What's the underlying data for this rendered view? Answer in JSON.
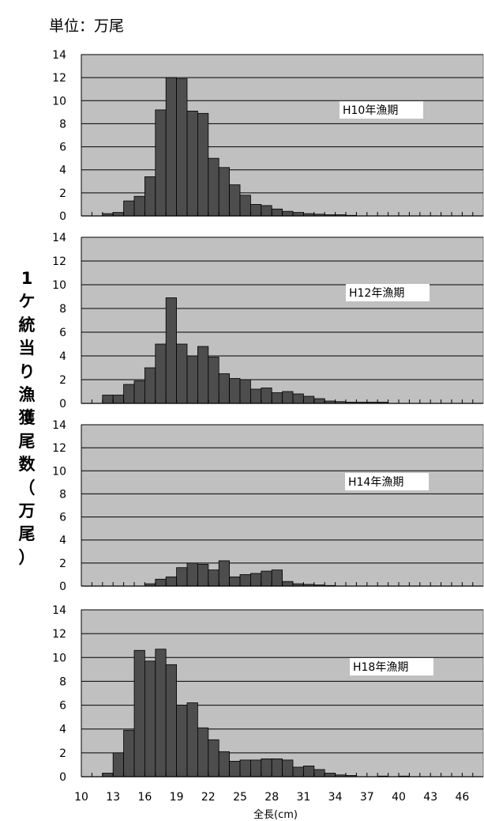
{
  "unit_label": "単位：万尾",
  "y_axis_title": [
    "1",
    "ケ",
    "統",
    "当",
    "り",
    "漁",
    "獲",
    "尾",
    "数",
    "（",
    "万",
    "尾",
    "）"
  ],
  "x_axis_title": "全長(cm)",
  "colors": {
    "plot_bg": "#c0c0c0",
    "bar": "#4d4d4d",
    "gridline": "#000000"
  },
  "chart_data": {
    "type": "bar",
    "layout": "four vertically stacked histograms sharing the x axis",
    "x_range": [
      10,
      48
    ],
    "x_ticks": [
      "10",
      "13",
      "16",
      "19",
      "22",
      "25",
      "28",
      "31",
      "34",
      "37",
      "40",
      "43",
      "46"
    ],
    "x_bin_width_cm": 1,
    "ylim": [
      0,
      14
    ],
    "y_ticks": [
      "0",
      "2",
      "4",
      "6",
      "8",
      "10",
      "12",
      "14"
    ],
    "grid": "horizontal",
    "series": [
      {
        "name": "H10年漁期",
        "bins_start": [
          12,
          13,
          14,
          15,
          16,
          17,
          18,
          19,
          20,
          21,
          22,
          23,
          24,
          25,
          26,
          27,
          28,
          29,
          30,
          31,
          32,
          33,
          34,
          35
        ],
        "values": [
          0.2,
          0.3,
          1.3,
          1.7,
          3.4,
          9.2,
          12.0,
          11.9,
          9.1,
          8.9,
          5.0,
          4.2,
          2.7,
          1.8,
          1.0,
          0.9,
          0.6,
          0.4,
          0.3,
          0.2,
          0.15,
          0.1,
          0.1,
          0.05
        ]
      },
      {
        "name": "H12年漁期",
        "bins_start": [
          12,
          13,
          14,
          15,
          16,
          17,
          18,
          19,
          20,
          21,
          22,
          23,
          24,
          25,
          26,
          27,
          28,
          29,
          30,
          31,
          32,
          33,
          34,
          35,
          36,
          37,
          38
        ],
        "values": [
          0.7,
          0.7,
          1.6,
          1.9,
          3.0,
          5.0,
          8.9,
          5.0,
          4.0,
          4.8,
          3.9,
          2.5,
          2.1,
          2.0,
          1.2,
          1.3,
          0.9,
          1.0,
          0.8,
          0.6,
          0.4,
          0.2,
          0.15,
          0.1,
          0.1,
          0.1,
          0.1
        ]
      },
      {
        "name": "H14年漁期",
        "bins_start": [
          16,
          17,
          18,
          19,
          20,
          21,
          22,
          23,
          24,
          25,
          26,
          27,
          28,
          29,
          30,
          31,
          32,
          33
        ],
        "values": [
          0.2,
          0.6,
          0.8,
          1.6,
          2.0,
          1.9,
          1.4,
          2.2,
          0.8,
          1.0,
          1.1,
          1.3,
          1.4,
          0.4,
          0.2,
          0.15,
          0.1,
          0.05
        ]
      },
      {
        "name": "H18年漁期",
        "bins_start": [
          12,
          13,
          14,
          15,
          16,
          17,
          18,
          19,
          20,
          21,
          22,
          23,
          24,
          25,
          26,
          27,
          28,
          29,
          30,
          31,
          32,
          33,
          34,
          35,
          36,
          37,
          38,
          39,
          40
        ],
        "values": [
          0.3,
          2.0,
          3.9,
          10.6,
          9.7,
          10.7,
          9.4,
          6.0,
          6.2,
          4.1,
          3.1,
          2.1,
          1.3,
          1.4,
          1.4,
          1.5,
          1.5,
          1.4,
          0.8,
          0.9,
          0.6,
          0.3,
          0.15,
          0.1,
          0,
          0,
          0.05,
          0,
          0.05
        ]
      }
    ]
  }
}
